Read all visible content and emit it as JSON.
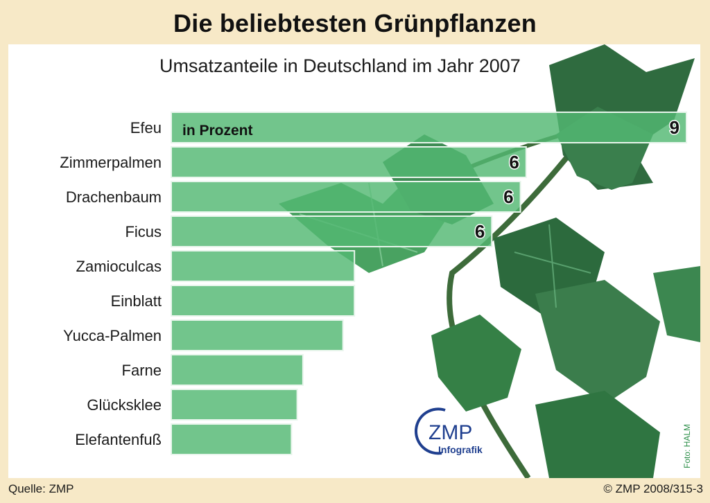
{
  "header": {
    "title": "Die beliebtesten Grünpflanzen"
  },
  "subtitle": "Umsatzanteile in Deutschland im Jahr 2007",
  "unit_label": "in Prozent",
  "logo": {
    "main": "ZMP",
    "sub": "Infografik"
  },
  "footer": {
    "source": "Quelle: ZMP",
    "copyright": "© ZMP 2008/315-3",
    "photo_credit": "Foto: HALM"
  },
  "colors": {
    "bar": "#53b873",
    "bar_border": "#e8f5ec",
    "background": "#f7e9c7",
    "leaf": "#2f7a45"
  },
  "chart_data": {
    "type": "bar",
    "orientation": "horizontal",
    "title": "Die beliebtesten Grünpflanzen",
    "subtitle": "Umsatzanteile in Deutschland im Jahr 2007",
    "unit": "in Prozent",
    "categories": [
      "Efeu",
      "Zimmerpalmen",
      "Drachenbaum",
      "Ficus",
      "Zamioculcas",
      "Einblatt",
      "Yucca-Palmen",
      "Farne",
      "Glücksklee",
      "Elefantenfuß"
    ],
    "values": [
      9,
      6.2,
      6.1,
      5.6,
      3.2,
      3.2,
      3.0,
      2.3,
      2.2,
      2.1
    ],
    "data_labels": [
      "9",
      "6",
      "6",
      "6",
      "",
      "",
      "",
      "",
      "",
      ""
    ],
    "xlim": [
      0,
      9
    ]
  }
}
